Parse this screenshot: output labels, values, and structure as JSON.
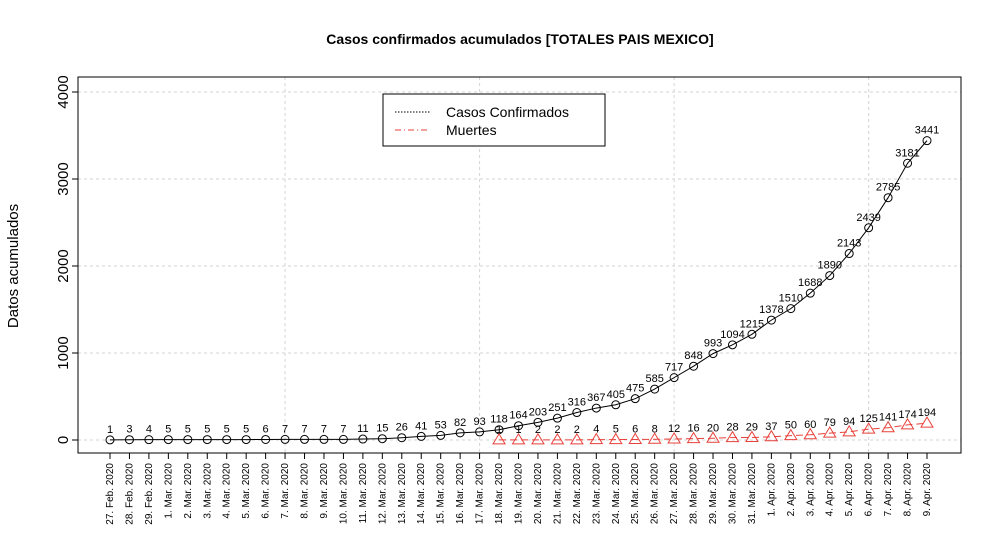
{
  "chart_data": {
    "type": "line",
    "title": "Casos confirmados acumulados [TOTALES PAIS MEXICO]",
    "y_label": "Datos acumulados",
    "categories": [
      "27. Feb. 2020",
      "28. Feb. 2020",
      "29. Feb. 2020",
      "1. Mar. 2020",
      "2. Mar. 2020",
      "3. Mar. 2020",
      "4. Mar. 2020",
      "5. Mar. 2020",
      "6. Mar. 2020",
      "7. Mar. 2020",
      "8. Mar. 2020",
      "9. Mar. 2020",
      "10. Mar. 2020",
      "11. Mar. 2020",
      "12. Mar. 2020",
      "13. Mar. 2020",
      "14. Mar. 2020",
      "15. Mar. 2020",
      "16. Mar. 2020",
      "17. Mar. 2020",
      "18. Mar. 2020",
      "19. Mar. 2020",
      "20. Mar. 2020",
      "21. Mar. 2020",
      "22. Mar. 2020",
      "23. Mar. 2020",
      "24. Mar. 2020",
      "25. Mar. 2020",
      "26. Mar. 2020",
      "27. Mar. 2020",
      "28. Mar. 2020",
      "29. Mar. 2020",
      "30. Mar. 2020",
      "31. Mar. 2020",
      "1. Apr. 2020",
      "2. Apr. 2020",
      "3. Apr. 2020",
      "4. Apr. 2020",
      "5. Apr. 2020",
      "6. Apr. 2020",
      "7. Apr. 2020",
      "8. Apr. 2020",
      "9. Apr. 2020"
    ],
    "series": [
      {
        "name": "Casos Confirmados",
        "color": "#000000",
        "values": [
          1,
          3,
          4,
          5,
          5,
          5,
          5,
          5,
          6,
          7,
          7,
          7,
          7,
          11,
          15,
          26,
          41,
          53,
          82,
          93,
          118,
          164,
          203,
          251,
          316,
          367,
          405,
          475,
          585,
          717,
          848,
          993,
          1094,
          1215,
          1378,
          1510,
          1688,
          1890,
          2143,
          2439,
          2785,
          3181,
          3441
        ]
      },
      {
        "name": "Muertes",
        "color": "#e8403a",
        "values": [
          null,
          null,
          null,
          null,
          null,
          null,
          null,
          null,
          null,
          null,
          null,
          null,
          null,
          null,
          null,
          null,
          null,
          null,
          null,
          null,
          1,
          1,
          2,
          2,
          2,
          4,
          5,
          6,
          8,
          12,
          16,
          20,
          28,
          29,
          37,
          50,
          60,
          79,
          94,
          125,
          141,
          174,
          194
        ]
      }
    ],
    "ylim": [
      0,
      4000
    ],
    "yticks": [
      0,
      1000,
      2000,
      3000,
      4000
    ],
    "grid": true,
    "legend": "top"
  }
}
